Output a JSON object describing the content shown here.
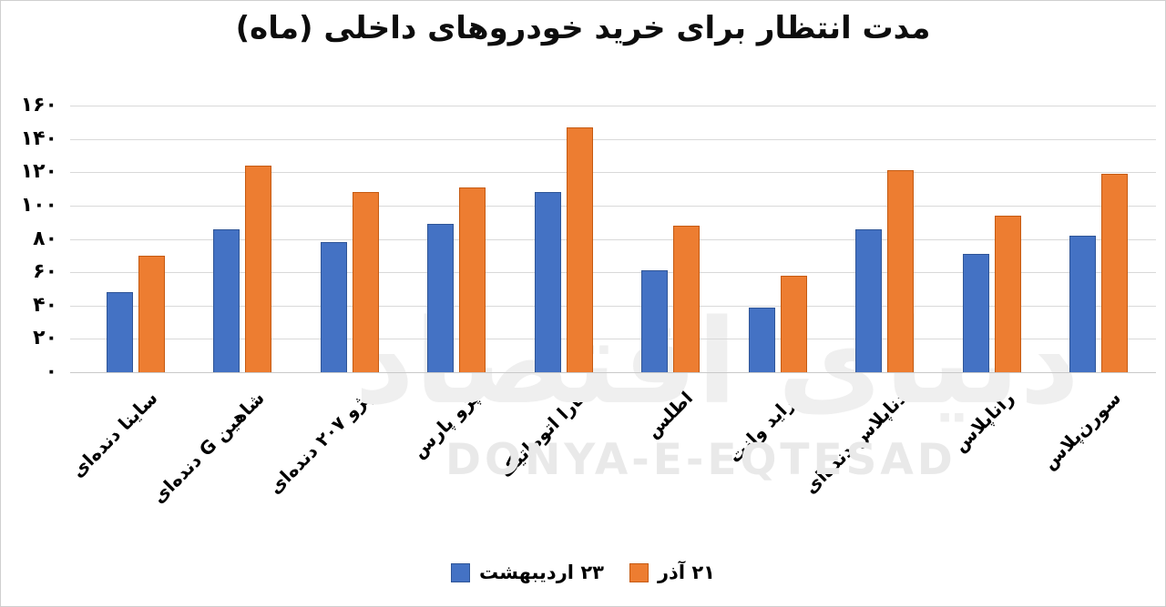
{
  "title": "مدت انتظار برای خرید خودروهای داخلی (ماه)",
  "watermark": {
    "persian": "دنیای اقتصاد",
    "latin": "DONYA-E-EQTESAD"
  },
  "chart_data": {
    "type": "bar",
    "title": "مدت انتظار برای خرید خودروهای داخلی (ماه)",
    "xlabel": "",
    "ylabel": "",
    "ylim": [
      0,
      160
    ],
    "grid": true,
    "legend_position": "bottom-center",
    "categories": [
      "ساینا دنده‌ای",
      "شاهین G دنده‌ای",
      "پژو ۲۰۷ دنده‌ای",
      "پژو پارس",
      "تارا اتوماتیک",
      "اطلس",
      "پراید وانت",
      "دناپلاس دنده‌ای",
      "راناپلاس",
      "سورن‌پلاس"
    ],
    "series": [
      {
        "name": "۲۳ اردیبهشت",
        "color": "#4472C4",
        "border_color": "#2f5597",
        "values": [
          48,
          86,
          78,
          89,
          108,
          61,
          39,
          86,
          71,
          82
        ]
      },
      {
        "name": "۲۱ آذر",
        "color": "#ED7D31",
        "border_color": "#c55a11",
        "values": [
          70,
          124,
          108,
          111,
          147,
          88,
          58,
          121,
          94,
          119
        ]
      }
    ],
    "yticks": [
      {
        "label": "۱۶۰",
        "value": 160
      },
      {
        "label": "۱۴۰",
        "value": 140
      },
      {
        "label": "۱۲۰",
        "value": 120
      },
      {
        "label": "۱۰۰",
        "value": 100
      },
      {
        "label": "۸۰",
        "value": 80
      },
      {
        "label": "۶۰",
        "value": 60
      },
      {
        "label": "۴۰",
        "value": 40
      },
      {
        "label": "۲۰",
        "value": 20
      },
      {
        "label": "۰",
        "value": 0
      }
    ]
  }
}
